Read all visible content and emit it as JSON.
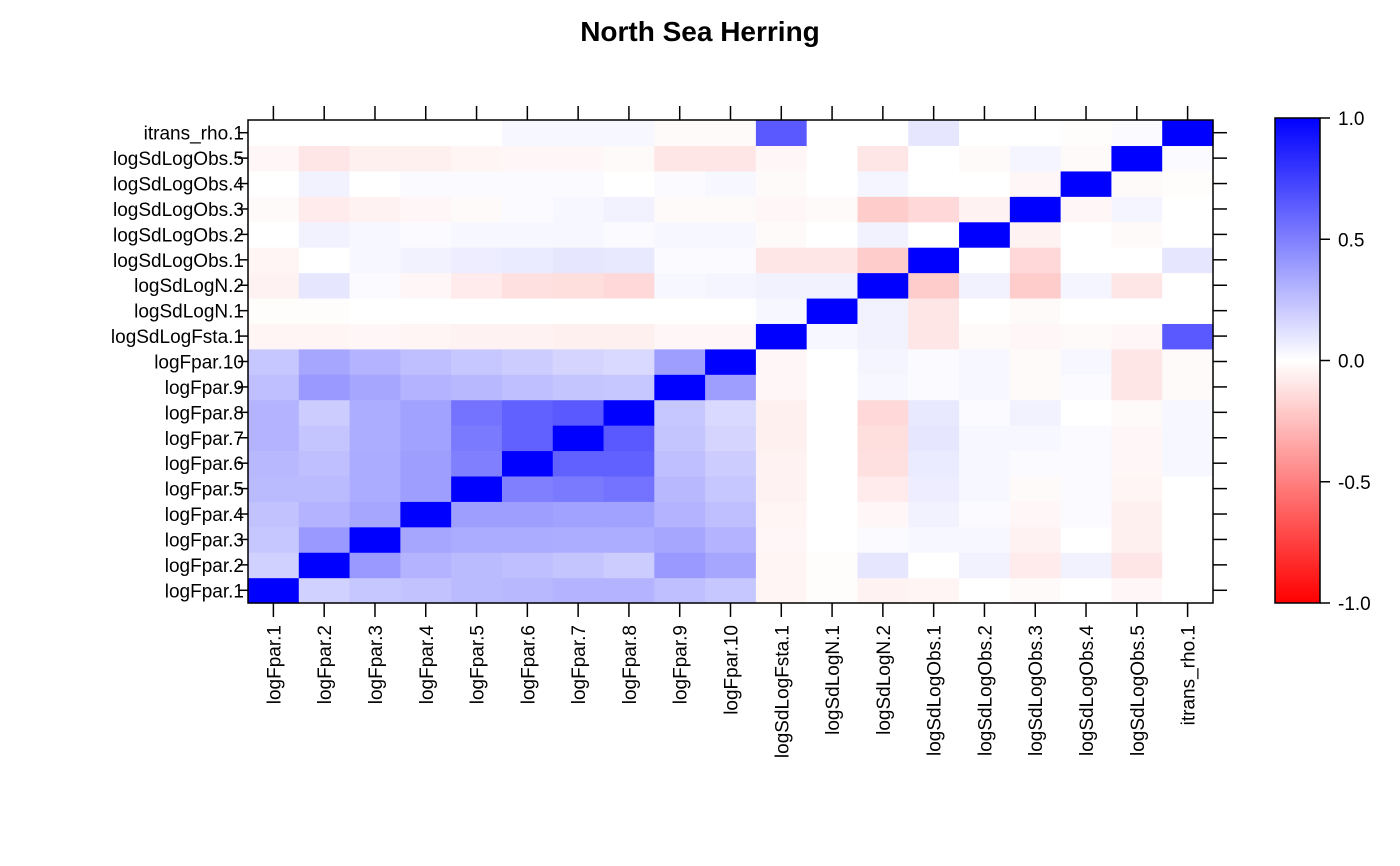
{
  "chart_data": {
    "type": "heatmap",
    "title": "North Sea Herring",
    "xlabel": "",
    "ylabel": "",
    "labels": [
      "logFpar.1",
      "logFpar.2",
      "logFpar.3",
      "logFpar.4",
      "logFpar.5",
      "logFpar.6",
      "logFpar.7",
      "logFpar.8",
      "logFpar.9",
      "logFpar.10",
      "logSdLogFsta.1",
      "logSdLogN.1",
      "logSdLogN.2",
      "logSdLogObs.1",
      "logSdLogObs.2",
      "logSdLogObs.3",
      "logSdLogObs.4",
      "logSdLogObs.5",
      "itrans_rho.1"
    ],
    "rows": [
      [
        1.0,
        0.18,
        0.22,
        0.24,
        0.27,
        0.28,
        0.3,
        0.3,
        0.25,
        0.22,
        -0.04,
        -0.01,
        -0.05,
        -0.04,
        0.0,
        -0.02,
        0.0,
        -0.03,
        0.0
      ],
      [
        0.18,
        1.0,
        0.4,
        0.3,
        0.27,
        0.25,
        0.23,
        0.2,
        0.4,
        0.35,
        -0.04,
        -0.01,
        0.1,
        0.0,
        0.05,
        -0.08,
        0.05,
        -0.1,
        0.0
      ],
      [
        0.22,
        0.4,
        1.0,
        0.35,
        0.33,
        0.33,
        0.32,
        0.32,
        0.35,
        0.3,
        -0.03,
        0.0,
        0.02,
        0.03,
        0.03,
        -0.05,
        0.0,
        -0.06,
        0.0
      ],
      [
        0.24,
        0.3,
        0.35,
        1.0,
        0.38,
        0.38,
        0.37,
        0.37,
        0.3,
        0.25,
        -0.04,
        0.0,
        -0.03,
        0.05,
        0.02,
        -0.03,
        0.02,
        -0.06,
        0.0
      ],
      [
        0.27,
        0.27,
        0.33,
        0.38,
        1.0,
        0.5,
        0.52,
        0.55,
        0.28,
        0.22,
        -0.05,
        0.0,
        -0.08,
        0.07,
        0.03,
        -0.02,
        0.02,
        -0.04,
        0.0
      ],
      [
        0.28,
        0.25,
        0.33,
        0.38,
        0.5,
        1.0,
        0.62,
        0.62,
        0.25,
        0.2,
        -0.05,
        0.0,
        -0.12,
        0.08,
        0.03,
        0.02,
        0.02,
        -0.03,
        0.03
      ],
      [
        0.3,
        0.23,
        0.32,
        0.37,
        0.52,
        0.62,
        1.0,
        0.65,
        0.23,
        0.17,
        -0.06,
        0.0,
        -0.13,
        0.1,
        0.03,
        0.03,
        0.02,
        -0.03,
        0.03
      ],
      [
        0.3,
        0.2,
        0.32,
        0.37,
        0.55,
        0.62,
        0.65,
        1.0,
        0.22,
        0.15,
        -0.06,
        0.0,
        -0.15,
        0.09,
        0.02,
        0.05,
        0.0,
        -0.02,
        0.03
      ],
      [
        0.25,
        0.4,
        0.35,
        0.3,
        0.28,
        0.25,
        0.23,
        0.22,
        1.0,
        0.38,
        -0.03,
        0.0,
        0.03,
        0.02,
        0.03,
        -0.02,
        0.02,
        -0.1,
        -0.02
      ],
      [
        0.22,
        0.35,
        0.3,
        0.25,
        0.22,
        0.2,
        0.17,
        0.15,
        0.38,
        1.0,
        -0.03,
        0.0,
        0.04,
        0.02,
        0.03,
        -0.02,
        0.03,
        -0.1,
        -0.02
      ],
      [
        -0.04,
        -0.04,
        -0.03,
        -0.04,
        -0.05,
        -0.05,
        -0.06,
        -0.06,
        -0.03,
        -0.03,
        1.0,
        0.03,
        0.05,
        -0.1,
        -0.02,
        -0.03,
        -0.02,
        -0.03,
        0.65
      ],
      [
        -0.01,
        -0.01,
        0.0,
        0.0,
        0.0,
        0.0,
        0.0,
        0.0,
        0.0,
        0.0,
        0.03,
        1.0,
        0.05,
        -0.1,
        0.0,
        -0.02,
        0.0,
        0.0,
        0.0
      ],
      [
        -0.05,
        0.1,
        0.02,
        -0.03,
        -0.08,
        -0.12,
        -0.13,
        -0.15,
        0.03,
        0.04,
        0.05,
        0.05,
        1.0,
        -0.2,
        0.05,
        -0.2,
        0.04,
        -0.1,
        0.0
      ],
      [
        -0.04,
        0.0,
        0.03,
        0.05,
        0.07,
        0.08,
        0.1,
        0.09,
        0.02,
        0.02,
        -0.1,
        -0.1,
        -0.2,
        1.0,
        0.0,
        -0.15,
        0.0,
        0.0,
        0.1
      ],
      [
        0.0,
        0.05,
        0.03,
        0.02,
        0.03,
        0.03,
        0.03,
        0.02,
        0.03,
        0.03,
        -0.02,
        0.0,
        0.05,
        0.0,
        1.0,
        -0.05,
        0.0,
        -0.02,
        0.0
      ],
      [
        -0.02,
        -0.08,
        -0.05,
        -0.03,
        -0.02,
        0.02,
        0.03,
        0.05,
        -0.02,
        -0.02,
        -0.03,
        -0.02,
        -0.2,
        -0.15,
        -0.05,
        1.0,
        -0.03,
        0.04,
        0.0
      ],
      [
        0.0,
        0.05,
        0.0,
        0.02,
        0.02,
        0.02,
        0.02,
        0.0,
        0.02,
        0.03,
        -0.02,
        0.0,
        0.04,
        0.0,
        0.0,
        -0.03,
        1.0,
        -0.02,
        -0.01
      ],
      [
        -0.03,
        -0.1,
        -0.06,
        -0.06,
        -0.04,
        -0.03,
        -0.03,
        -0.02,
        -0.1,
        -0.1,
        -0.03,
        0.0,
        -0.1,
        0.0,
        -0.02,
        0.04,
        -0.02,
        1.0,
        0.02
      ],
      [
        0.0,
        0.0,
        0.0,
        0.0,
        0.0,
        0.03,
        0.03,
        0.03,
        -0.02,
        -0.02,
        0.65,
        0.0,
        0.0,
        0.1,
        0.0,
        0.0,
        -0.01,
        0.02,
        1.0
      ]
    ],
    "colorbar": {
      "range": [
        -1.0,
        1.0
      ],
      "ticks": [
        1.0,
        0.5,
        0.0,
        -0.5,
        -1.0
      ],
      "tick_labels": [
        "1.0",
        "0.5",
        "0.0",
        "-0.5",
        "-1.0"
      ],
      "colors": {
        "negative": "#ff0000",
        "zero": "#ffffff",
        "positive": "#0000ff"
      }
    }
  }
}
